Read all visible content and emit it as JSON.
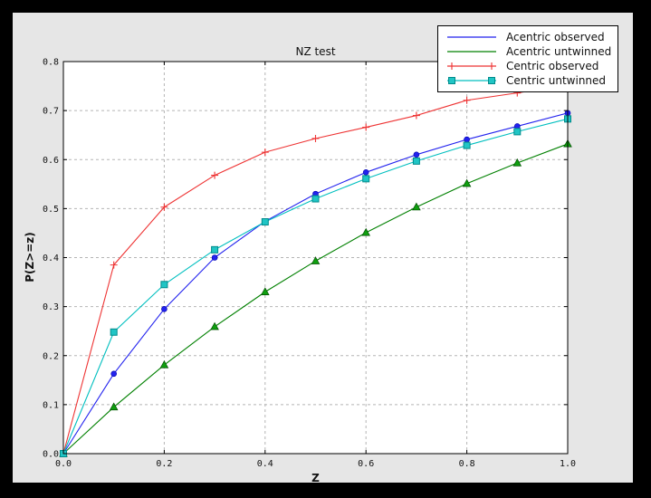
{
  "window": {
    "outer_background": "#000000",
    "figure_background": "#e6e6e6",
    "plot_background": "#ffffff",
    "axis_color": "#000000",
    "grid_color": "#b5b5b5",
    "tick_label_color": "#111111"
  },
  "chart_data": {
    "type": "line",
    "title": "NZ test",
    "xlabel": "Z",
    "ylabel": "P(Z>=z)",
    "xlim": [
      0.0,
      1.0
    ],
    "ylim": [
      0.0,
      0.8
    ],
    "xticks": [
      "0.0",
      "0.2",
      "0.4",
      "0.6",
      "0.8",
      "1.0"
    ],
    "yticks": [
      "0.0",
      "0.1",
      "0.2",
      "0.3",
      "0.4",
      "0.5",
      "0.6",
      "0.7",
      "0.8"
    ],
    "grid": true,
    "legend_position": "upper right",
    "x": [
      0.0,
      0.1,
      0.2,
      0.3,
      0.4,
      0.5,
      0.6,
      0.7,
      0.8,
      0.9,
      1.0
    ],
    "series": [
      {
        "name": "Acentric observed",
        "color": "#2222ee",
        "marker": "circle",
        "marker_fill": "#2222ee",
        "marker_edge": "#0000aa",
        "legend_marker": "none",
        "values": [
          0.0,
          0.163,
          0.295,
          0.4,
          0.474,
          0.53,
          0.574,
          0.61,
          0.641,
          0.668,
          0.695
        ]
      },
      {
        "name": "Acentric untwinned",
        "color": "#008000",
        "marker": "triangle",
        "marker_fill": "#0f9f0f",
        "marker_edge": "#004d00",
        "legend_marker": "none",
        "values": [
          0.0,
          0.095,
          0.181,
          0.259,
          0.33,
          0.393,
          0.451,
          0.503,
          0.551,
          0.593,
          0.632
        ]
      },
      {
        "name": "Centric observed",
        "color": "#ee3333",
        "marker": "plus",
        "marker_fill": "#ee3333",
        "marker_edge": "#ee3333",
        "legend_marker": "plus",
        "values": [
          0.0,
          0.385,
          0.503,
          0.568,
          0.615,
          0.643,
          0.666,
          0.69,
          0.721,
          0.736,
          0.752
        ]
      },
      {
        "name": "Centric untwinned",
        "color": "#00bfbf",
        "marker": "square",
        "marker_fill": "#20c5c5",
        "marker_edge": "#008b8b",
        "legend_marker": "square",
        "values": [
          0.0,
          0.248,
          0.345,
          0.416,
          0.473,
          0.52,
          0.561,
          0.597,
          0.629,
          0.657,
          0.683
        ]
      }
    ]
  }
}
